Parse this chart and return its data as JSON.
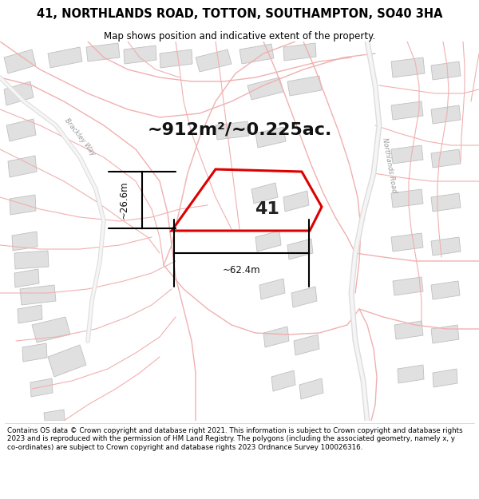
{
  "title_line1": "41, NORTHLANDS ROAD, TOTTON, SOUTHAMPTON, SO40 3HA",
  "title_line2": "Map shows position and indicative extent of the property.",
  "footer_text": "Contains OS data © Crown copyright and database right 2021. This information is subject to Crown copyright and database rights 2023 and is reproduced with the permission of HM Land Registry. The polygons (including the associated geometry, namely x, y co-ordinates) are subject to Crown copyright and database rights 2023 Ordnance Survey 100026316.",
  "map_bg": "#ffffff",
  "title_bg": "#ffffff",
  "footer_bg": "#ffffff",
  "property_color": "#dd0000",
  "property_label": "41",
  "area_text": "~912m²/~0.225ac.",
  "dim_h_text": "~26.6m",
  "dim_w_text": "~62.4m",
  "road_label": "Northlands Road",
  "road2_label": "Brackley Way",
  "road_color": "#f0b0b0",
  "building_fill": "#e0e0e0",
  "building_edge": "#c0c0c0"
}
